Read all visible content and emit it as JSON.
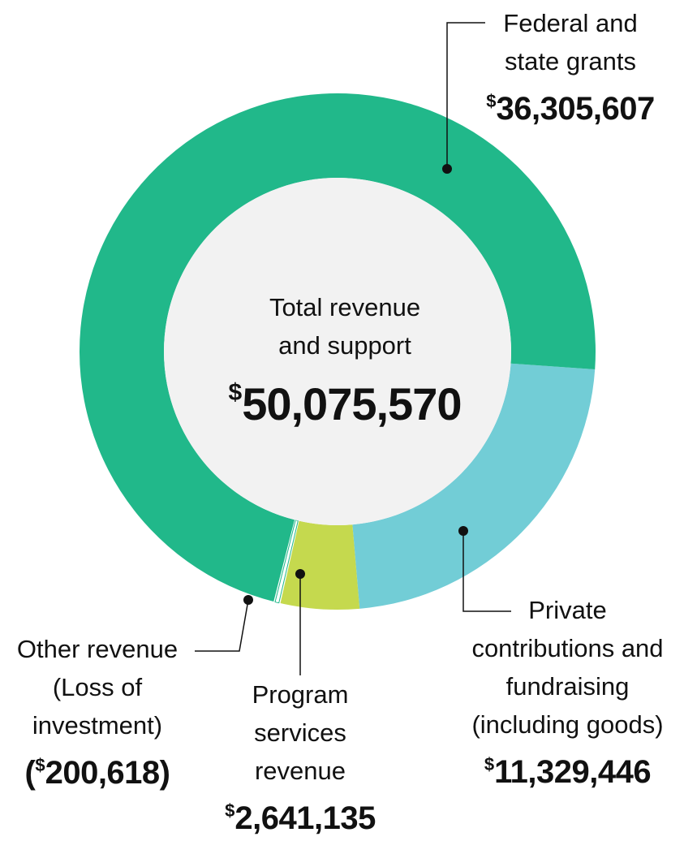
{
  "colors": {
    "federal": "#21B88A",
    "private": "#72CDD6",
    "program": "#C5D94E",
    "other": "#21B88A",
    "center": "#F2F2F2",
    "text": "#111111"
  },
  "currency_symbol": "$",
  "center": {
    "title_line1": "Total revenue",
    "title_line2": "and support",
    "amount": "50,075,570"
  },
  "labels": {
    "federal": {
      "line1": "Federal and",
      "line2": "state grants",
      "amount": "36,305,607"
    },
    "private": {
      "line1": "Private",
      "line2": "contributions and",
      "line3": "fundraising",
      "line4": "(including goods)",
      "amount": "11,329,446"
    },
    "program": {
      "line1": "Program",
      "line2": "services",
      "line3": "revenue",
      "amount": "2,641,135"
    },
    "other": {
      "line1": "Other revenue",
      "line2": "(Loss of",
      "line3": "investment)",
      "amount_open": "(",
      "amount": "200,618",
      "amount_close": ")"
    }
  },
  "chart_data": {
    "type": "pie",
    "title": "Total revenue and support",
    "total": 50075570,
    "slices": [
      {
        "key": "federal",
        "name": "Federal and state grants",
        "value": 36305607
      },
      {
        "key": "private",
        "name": "Private contributions and fundraising (including goods)",
        "value": 11329446
      },
      {
        "key": "program",
        "name": "Program services revenue",
        "value": 2641135
      },
      {
        "key": "other",
        "name": "Other revenue (Loss of investment)",
        "value": -200618
      }
    ]
  }
}
